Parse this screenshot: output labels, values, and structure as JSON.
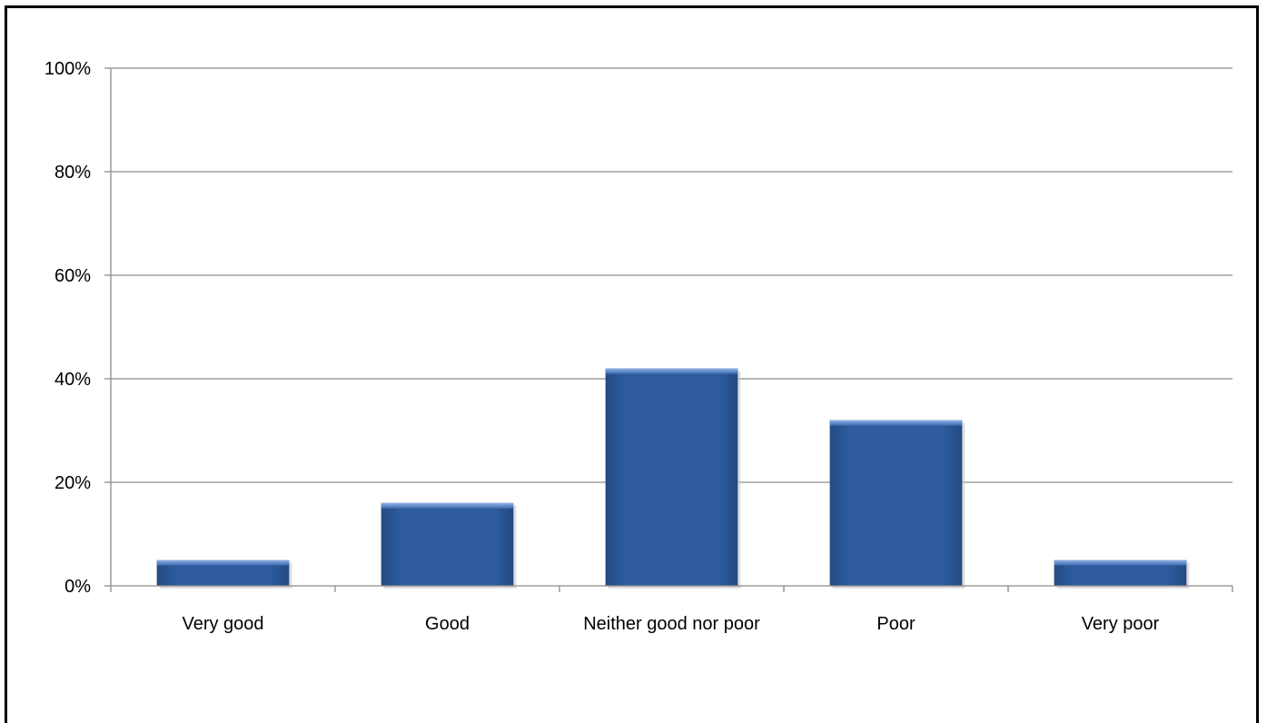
{
  "chart_data": {
    "type": "bar",
    "categories": [
      "Very good",
      "Good",
      "Neither good nor poor",
      "Poor",
      "Very poor"
    ],
    "values": [
      5,
      16,
      42,
      32,
      5
    ],
    "ylim": [
      0,
      100
    ],
    "yticks": [
      0,
      20,
      40,
      60,
      80,
      100
    ],
    "ytick_labels": [
      "0%",
      "20%",
      "40%",
      "60%",
      "80%",
      "100%"
    ],
    "title": "",
    "xlabel": "",
    "ylabel": "",
    "grid": true,
    "legend": "none",
    "bar_color": "#2e5c9e",
    "bar_highlight": "#6a95d4"
  }
}
